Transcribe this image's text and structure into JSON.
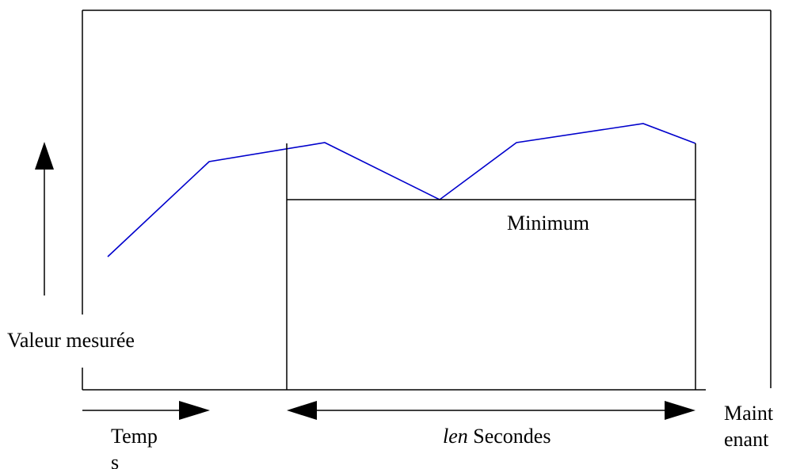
{
  "labels": {
    "y_axis": "Valeur mesurée",
    "minimum": "Minimum",
    "time_line1": "Temp",
    "time_line2": "s",
    "window_var": "len",
    "window_unit": " Secondes",
    "now_line1": "Maint",
    "now_line2": "enant"
  },
  "colors": {
    "signal": "#0000cc",
    "ink": "#000000"
  }
}
